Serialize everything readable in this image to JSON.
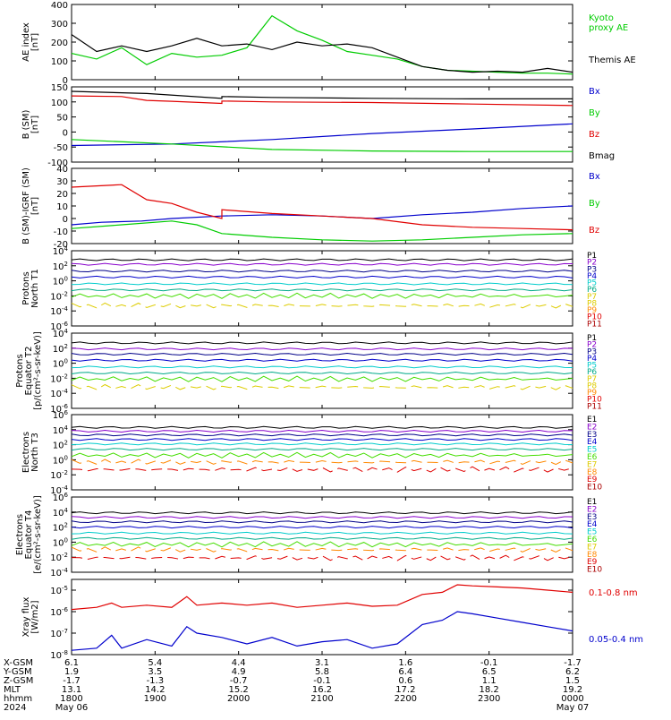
{
  "colors": {
    "black": "#000000",
    "red": "#e00000",
    "green": "#00cc00",
    "blue": "#0000cc",
    "violet": "#8800cc",
    "cyan": "#00cccc",
    "teal": "#00aa88",
    "yellow": "#ddcc00",
    "orange": "#ff8800",
    "darkred": "#aa0000",
    "lightgreen": "#44dd00"
  },
  "chart_data": [
    {
      "id": "ae",
      "type": "line",
      "ylabel_lines": [
        "AE index",
        "[nT]"
      ],
      "ylim": [
        0,
        400
      ],
      "yticks": [
        "0",
        "100",
        "200",
        "300",
        "400"
      ],
      "yscale": "linear",
      "series": [
        {
          "name": "Kyoto proxy AE",
          "color": "green",
          "x": [
            0,
            0.25,
            0.5,
            0.75,
            1,
            1.25,
            1.5,
            1.75,
            2,
            2.25,
            2.5,
            2.75,
            3,
            3.25,
            3.5,
            3.75,
            4,
            4.25,
            4.5,
            4.75,
            5
          ],
          "values": [
            140,
            110,
            170,
            80,
            140,
            120,
            130,
            170,
            340,
            260,
            210,
            150,
            130,
            110,
            70,
            50,
            45,
            40,
            35,
            35,
            30
          ]
        },
        {
          "name": "Themis AE",
          "color": "black",
          "x": [
            0,
            0.25,
            0.5,
            0.75,
            1,
            1.25,
            1.5,
            1.75,
            2,
            2.25,
            2.5,
            2.75,
            3,
            3.25,
            3.5,
            3.75,
            4,
            4.25,
            4.5,
            4.75,
            5
          ],
          "values": [
            240,
            150,
            180,
            150,
            180,
            220,
            180,
            190,
            160,
            200,
            180,
            190,
            170,
            120,
            70,
            50,
            40,
            45,
            40,
            60,
            40
          ]
        }
      ],
      "legend": [
        {
          "lines": [
            "Kyoto",
            "proxy AE"
          ],
          "color": "green"
        },
        {
          "lines": [
            "Themis AE"
          ],
          "color": "black"
        }
      ]
    },
    {
      "id": "b",
      "type": "line",
      "ylabel_lines": [
        "B (SM)",
        "[nT]"
      ],
      "ylim": [
        -100,
        150
      ],
      "yticks": [
        "-100",
        "-50",
        "0",
        "50",
        "100",
        "150"
      ],
      "yscale": "linear",
      "series": [
        {
          "name": "Bx",
          "color": "blue",
          "x": [
            0,
            1,
            2,
            3,
            4,
            5
          ],
          "values": [
            -45,
            -40,
            -25,
            -5,
            10,
            27
          ]
        },
        {
          "name": "By",
          "color": "green",
          "x": [
            0,
            1,
            2,
            3,
            4,
            5
          ],
          "values": [
            -25,
            -40,
            -58,
            -63,
            -65,
            -65
          ]
        },
        {
          "name": "Bz",
          "color": "red",
          "x": [
            0,
            0.5,
            0.75,
            1,
            1.5,
            1.5,
            2,
            3,
            4,
            5
          ],
          "values": [
            120,
            118,
            105,
            102,
            95,
            103,
            100,
            98,
            93,
            88
          ]
        },
        {
          "name": "Bmag",
          "color": "black",
          "x": [
            0,
            0.75,
            1.5,
            1.5,
            2,
            3,
            4,
            5
          ],
          "values": [
            135,
            128,
            112,
            118,
            115,
            112,
            110,
            110
          ]
        }
      ],
      "legend": [
        {
          "lines": [
            "Bx"
          ],
          "color": "blue"
        },
        {
          "lines": [
            "By"
          ],
          "color": "green"
        },
        {
          "lines": [
            "Bz"
          ],
          "color": "red"
        },
        {
          "lines": [
            "Bmag"
          ],
          "color": "black"
        }
      ]
    },
    {
      "id": "dB",
      "type": "line",
      "ylabel_lines": [
        "B (SM)-IGRF (SM)",
        "[nT]"
      ],
      "ylim": [
        -20,
        40
      ],
      "yticks": [
        "-20",
        "-10",
        "0",
        "10",
        "20",
        "30",
        "40"
      ],
      "yscale": "linear",
      "series": [
        {
          "name": "Bx",
          "color": "blue",
          "x": [
            0,
            0.3,
            0.7,
            1,
            1.5,
            2,
            2.5,
            3,
            3.5,
            4,
            4.5,
            5
          ],
          "values": [
            -5,
            -3,
            -2,
            0,
            2,
            3,
            2,
            0,
            3,
            5,
            8,
            10
          ]
        },
        {
          "name": "By",
          "color": "green",
          "x": [
            0,
            0.5,
            1,
            1.25,
            1.5,
            2,
            2.5,
            3,
            3.5,
            4,
            4.5,
            5
          ],
          "values": [
            -8,
            -5,
            -2,
            -5,
            -12,
            -15,
            -17,
            -18,
            -17,
            -15,
            -13,
            -12
          ]
        },
        {
          "name": "Bz",
          "color": "red",
          "x": [
            0,
            0.5,
            0.75,
            1,
            1.25,
            1.5,
            1.5,
            2,
            2.5,
            3,
            3.5,
            4,
            4.5,
            5
          ],
          "values": [
            25,
            27,
            15,
            12,
            5,
            0,
            7,
            4,
            2,
            0,
            -5,
            -7,
            -8,
            -9
          ]
        }
      ],
      "legend": [
        {
          "lines": [
            "Bx"
          ],
          "color": "blue"
        },
        {
          "lines": [
            "By"
          ],
          "color": "green"
        },
        {
          "lines": [
            "Bz"
          ],
          "color": "red"
        }
      ]
    },
    {
      "id": "pnt1",
      "type": "line",
      "ylabel_lines": [
        "Protons",
        "North T1"
      ],
      "ylim": [
        -6,
        4
      ],
      "yscale": "log",
      "yticks": [
        "10^4",
        "10^2",
        "10^0",
        "10^-2",
        "10^-4",
        "10^-6"
      ],
      "series_levels": [
        2.8,
        2.2,
        1.3,
        0.5,
        -0.4,
        -1.2,
        -2.0,
        -3.3
      ],
      "series_colors": [
        "black",
        "violet",
        "darkblue",
        "blue",
        "cyan",
        "teal",
        "lightgreen",
        "yellow"
      ],
      "legend": [
        {
          "label": "P1",
          "color": "black"
        },
        {
          "label": "P2",
          "color": "violet"
        },
        {
          "label": "P3",
          "color": "darkblue"
        },
        {
          "label": "P4",
          "color": "blue"
        },
        {
          "label": "P5",
          "color": "cyan"
        },
        {
          "label": "P6",
          "color": "teal"
        },
        {
          "label": "P7",
          "color": "yellow"
        },
        {
          "label": "P8",
          "color": "yellow"
        },
        {
          "label": "P9",
          "color": "orange"
        },
        {
          "label": "P10",
          "color": "red"
        },
        {
          "label": "P11",
          "color": "darkred"
        }
      ]
    },
    {
      "id": "pet2",
      "type": "line",
      "ylabel_lines": [
        "Protons",
        "Equator T2",
        "[p/(cm²-s-sr-keV)]"
      ],
      "ylim": [
        -6,
        4
      ],
      "yscale": "log",
      "yticks": [
        "10^4",
        "10^2",
        "10^0",
        "10^-2",
        "10^-4",
        "10^-6"
      ],
      "series_levels": [
        2.7,
        1.9,
        1.2,
        0.4,
        -0.5,
        -1.3,
        -2.1,
        -3.2
      ],
      "series_colors": [
        "black",
        "violet",
        "darkblue",
        "blue",
        "cyan",
        "teal",
        "lightgreen",
        "yellow"
      ],
      "legend": [
        {
          "label": "P1",
          "color": "black"
        },
        {
          "label": "P2",
          "color": "violet"
        },
        {
          "label": "P3",
          "color": "darkblue"
        },
        {
          "label": "P4",
          "color": "blue"
        },
        {
          "label": "P5",
          "color": "cyan"
        },
        {
          "label": "P6",
          "color": "teal"
        },
        {
          "label": "P7",
          "color": "yellow"
        },
        {
          "label": "P8",
          "color": "yellow"
        },
        {
          "label": "P9",
          "color": "orange"
        },
        {
          "label": "P10",
          "color": "red"
        },
        {
          "label": "P11",
          "color": "darkred"
        }
      ]
    },
    {
      "id": "ent3",
      "type": "line",
      "ylabel_lines": [
        "Electrons",
        "North T3"
      ],
      "ylim": [
        -4,
        6
      ],
      "yscale": "log",
      "yticks": [
        "10^6",
        "10^4",
        "10^2",
        "10^0",
        "10^-2",
        "10^-4"
      ],
      "series_levels": [
        4.3,
        3.8,
        3.3,
        2.7,
        2.1,
        1.4,
        0.6,
        -0.3,
        -1.3
      ],
      "series_colors": [
        "black",
        "violet",
        "darkblue",
        "blue",
        "cyan",
        "teal",
        "lightgreen",
        "orange",
        "red"
      ],
      "legend": [
        {
          "label": "E1",
          "color": "black"
        },
        {
          "label": "E2",
          "color": "violet"
        },
        {
          "label": "E3",
          "color": "darkblue"
        },
        {
          "label": "E4",
          "color": "blue"
        },
        {
          "label": "E5",
          "color": "cyan"
        },
        {
          "label": "E6",
          "color": "lightgreen"
        },
        {
          "label": "E7",
          "color": "yellow"
        },
        {
          "label": "E8",
          "color": "orange"
        },
        {
          "label": "E9",
          "color": "red"
        },
        {
          "label": "E10",
          "color": "darkred"
        }
      ]
    },
    {
      "id": "eet4",
      "type": "line",
      "ylabel_lines": [
        "Electrons",
        "Equator T4",
        "[e/(cm²-s-sr-keV)]"
      ],
      "ylim": [
        -4,
        6
      ],
      "yscale": "log",
      "yticks": [
        "10^6",
        "10^4",
        "10^2",
        "10^0",
        "10^-2",
        "10^-4"
      ],
      "series_levels": [
        3.9,
        3.3,
        2.7,
        2.0,
        1.2,
        0.5,
        -0.3,
        -1.0,
        -2.1
      ],
      "series_colors": [
        "black",
        "violet",
        "darkblue",
        "blue",
        "cyan",
        "teal",
        "lightgreen",
        "orange",
        "red"
      ],
      "legend": [
        {
          "label": "E1",
          "color": "black"
        },
        {
          "label": "E2",
          "color": "violet"
        },
        {
          "label": "E3",
          "color": "darkblue"
        },
        {
          "label": "E4",
          "color": "blue"
        },
        {
          "label": "E5",
          "color": "cyan"
        },
        {
          "label": "E6",
          "color": "lightgreen"
        },
        {
          "label": "E7",
          "color": "yellow"
        },
        {
          "label": "E8",
          "color": "orange"
        },
        {
          "label": "E9",
          "color": "red"
        },
        {
          "label": "E10",
          "color": "darkred"
        }
      ]
    },
    {
      "id": "xray",
      "type": "line",
      "ylabel_lines": [
        "Xray flux",
        "[W/m2]"
      ],
      "ylim": [
        -8,
        -4.5
      ],
      "yscale": "log",
      "yticks": [
        "10^-5",
        "10^-6",
        "10^-7",
        "10^-8"
      ],
      "ytick_values": [
        -5,
        -6,
        -7,
        -8
      ],
      "series": [
        {
          "name": "0.1-0.8 nm",
          "color": "red",
          "x": [
            0,
            0.25,
            0.4,
            0.5,
            0.75,
            1,
            1.15,
            1.25,
            1.5,
            1.75,
            2,
            2.25,
            2.5,
            2.75,
            3,
            3.25,
            3.5,
            3.7,
            3.85,
            4,
            4.25,
            4.5,
            4.75,
            5
          ],
          "values": [
            -5.9,
            -5.8,
            -5.6,
            -5.8,
            -5.7,
            -5.8,
            -5.3,
            -5.7,
            -5.6,
            -5.7,
            -5.6,
            -5.8,
            -5.7,
            -5.6,
            -5.75,
            -5.7,
            -5.2,
            -5.1,
            -4.75,
            -4.8,
            -4.85,
            -4.9,
            -5.0,
            -5.1
          ]
        },
        {
          "name": "0.05-0.4 nm",
          "color": "blue",
          "x": [
            0,
            0.25,
            0.4,
            0.5,
            0.75,
            1,
            1.15,
            1.25,
            1.5,
            1.75,
            2,
            2.25,
            2.5,
            2.75,
            3,
            3.25,
            3.5,
            3.7,
            3.85,
            4,
            4.25,
            4.5,
            4.75,
            5
          ],
          "values": [
            -7.8,
            -7.7,
            -7.1,
            -7.7,
            -7.3,
            -7.6,
            -6.7,
            -7.0,
            -7.2,
            -7.5,
            -7.2,
            -7.6,
            -7.4,
            -7.3,
            -7.7,
            -7.5,
            -6.6,
            -6.4,
            -6.0,
            -6.1,
            -6.3,
            -6.5,
            -6.7,
            -6.9
          ]
        }
      ],
      "legend": [
        {
          "lines": [
            "0.1-0.8 nm"
          ],
          "color": "red"
        },
        {
          "lines": [
            "0.05-0.4 nm"
          ],
          "color": "blue"
        }
      ]
    }
  ],
  "footer": {
    "row_labels": [
      "X-GSM",
      "Y-GSM",
      "Z-GSM",
      "MLT",
      "hhmm",
      "2024"
    ],
    "columns": [
      [
        "6.1",
        "1.9",
        "-1.7",
        "13.1",
        "1800",
        "May 06"
      ],
      [
        "5.4",
        "3.5",
        "-1.3",
        "14.2",
        "1900",
        ""
      ],
      [
        "4.4",
        "4.9",
        "-0.7",
        "15.2",
        "2000",
        ""
      ],
      [
        "3.1",
        "5.8",
        "-0.1",
        "16.2",
        "2100",
        ""
      ],
      [
        "1.6",
        "6.4",
        "0.6",
        "17.2",
        "2200",
        ""
      ],
      [
        "-0.1",
        "6.5",
        "1.1",
        "18.2",
        "2300",
        ""
      ],
      [
        "-1.7",
        "6.2",
        "1.5",
        "19.2",
        "0000",
        "May 07"
      ]
    ]
  }
}
